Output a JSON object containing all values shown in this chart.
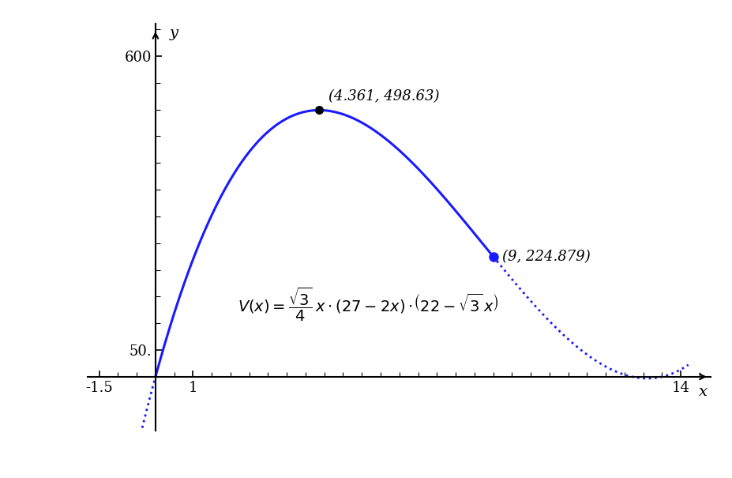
{
  "xlim": [
    -1.8,
    14.8
  ],
  "ylim": [
    -100,
    660
  ],
  "x_axis_y": 0,
  "solid_x_start": 0.0,
  "solid_x_end": 9.0,
  "dotted_x_start": -1.5,
  "dotted_x_end": 0.0,
  "dotted2_x_start": 9.0,
  "dotted2_x_end": 14.2,
  "max_point": [
    4.361,
    498.63
  ],
  "highlight_point": [
    9.0,
    224.879
  ],
  "curve_color": "#1a1aff",
  "background_color": "#ffffff",
  "annotation_max": "(4.361, 498.63)",
  "annotation_pt": "(9, 224.879)",
  "axis_label_x": "x",
  "axis_label_y": "y",
  "y_tick_600": 600,
  "y_tick_50": 50,
  "x_tick_neg15": -1.5,
  "x_tick_1": 1,
  "x_tick_14": 14
}
